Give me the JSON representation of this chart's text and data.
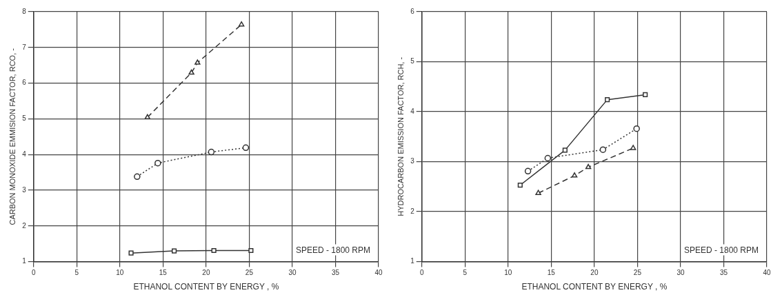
{
  "chart_data": [
    {
      "type": "line",
      "xlabel": "ETHANOL CONTENT BY ENERGY , %",
      "ylabel": "CARBON MONOXIDE EMMISION FACTOR, RCO, -",
      "xlim": [
        0,
        40
      ],
      "xticks": [
        0,
        5,
        10,
        15,
        20,
        25,
        30,
        35,
        40
      ],
      "ylim": [
        1,
        8
      ],
      "yticks": [
        1,
        2,
        3,
        4,
        5,
        6,
        7,
        8
      ],
      "grid": true,
      "legend": false,
      "annotations": [
        "SPEED - 1800 RPM"
      ],
      "series": [
        {
          "color": "#333333",
          "marker": "triangle",
          "line_style": "dashed",
          "x": [
            13.2,
            18.3,
            19.0,
            24.1
          ],
          "values": [
            5.04,
            6.29,
            6.57,
            7.64
          ]
        },
        {
          "color": "#333333",
          "marker": "circle",
          "line_style": "dotted",
          "x": [
            12.0,
            14.4,
            20.6,
            24.6
          ],
          "values": [
            3.38,
            3.76,
            4.07,
            4.19
          ]
        },
        {
          "color": "#333333",
          "marker": "square",
          "line_style": "solid",
          "x": [
            11.3,
            16.3,
            20.9,
            25.2
          ],
          "values": [
            1.24,
            1.3,
            1.31,
            1.31
          ]
        }
      ]
    },
    {
      "type": "line",
      "xlabel": "ETHANOL CONTENT BY ENERGY , %",
      "ylabel": "HYDROCARBON EMISSION FACTOR, RCH, -",
      "xlim": [
        0,
        40
      ],
      "xticks": [
        0,
        5,
        10,
        15,
        20,
        25,
        30,
        35,
        40
      ],
      "ylim": [
        1,
        6
      ],
      "yticks": [
        1,
        2,
        3,
        4,
        5,
        6
      ],
      "grid": true,
      "legend": false,
      "annotations": [
        "SPEED - 1800 RPM"
      ],
      "series": [
        {
          "color": "#333333",
          "marker": "square",
          "line_style": "solid",
          "x": [
            11.4,
            16.6,
            21.5,
            25.9
          ],
          "values": [
            2.53,
            3.23,
            4.24,
            4.34
          ]
        },
        {
          "color": "#333333",
          "marker": "circle",
          "line_style": "dotted",
          "x": [
            12.3,
            14.6,
            21.0,
            24.9
          ],
          "values": [
            2.81,
            3.07,
            3.24,
            3.66
          ]
        },
        {
          "color": "#333333",
          "marker": "triangle",
          "line_style": "dashed",
          "x": [
            13.5,
            17.7,
            19.3,
            24.5
          ],
          "values": [
            2.37,
            2.72,
            2.89,
            3.27
          ]
        }
      ]
    }
  ]
}
